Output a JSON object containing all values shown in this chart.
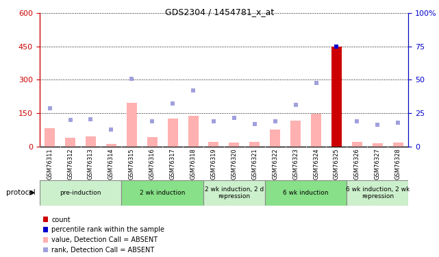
{
  "title": "GDS2304 / 1454781_x_at",
  "samples": [
    "GSM76311",
    "GSM76312",
    "GSM76313",
    "GSM76314",
    "GSM76315",
    "GSM76316",
    "GSM76317",
    "GSM76318",
    "GSM76319",
    "GSM76320",
    "GSM76321",
    "GSM76322",
    "GSM76323",
    "GSM76324",
    "GSM76325",
    "GSM76326",
    "GSM76327",
    "GSM76328"
  ],
  "values_absent": [
    82,
    38,
    45,
    12,
    195,
    42,
    125,
    138,
    22,
    18,
    20,
    75,
    115,
    148,
    448,
    22,
    15,
    18
  ],
  "ranks_absent": [
    170,
    118,
    122,
    75,
    305,
    112,
    193,
    252,
    112,
    128,
    102,
    112,
    188,
    285,
    450,
    112,
    98,
    108
  ],
  "is_count": [
    false,
    false,
    false,
    false,
    false,
    false,
    false,
    false,
    false,
    false,
    false,
    false,
    false,
    false,
    true,
    false,
    false,
    false
  ],
  "ylim_left": [
    0,
    600
  ],
  "ylim_right": [
    0,
    100
  ],
  "yticks_left": [
    0,
    150,
    300,
    450,
    600
  ],
  "yticks_right": [
    0,
    25,
    50,
    75,
    100
  ],
  "groups": [
    {
      "label": "pre-induction",
      "start": 0,
      "end": 3,
      "color": "#ccf0cc"
    },
    {
      "label": "2 wk induction",
      "start": 4,
      "end": 7,
      "color": "#88e088"
    },
    {
      "label": "2 wk induction, 2 d\nrepression",
      "start": 8,
      "end": 10,
      "color": "#ccf0cc"
    },
    {
      "label": "6 wk induction",
      "start": 11,
      "end": 14,
      "color": "#88e088"
    },
    {
      "label": "6 wk induction, 2 wk\nrepression",
      "start": 15,
      "end": 17,
      "color": "#ccf0cc"
    }
  ],
  "bar_color_absent": "#ffb0b0",
  "bar_color_count": "#cc0000",
  "dot_color_rank_absent": "#a0a0dd",
  "dot_color_count": "#0000cc",
  "left_axis_color": "#cc0000",
  "right_axis_color": "#0000cc",
  "xticklabel_bg": "#d8d8d8"
}
